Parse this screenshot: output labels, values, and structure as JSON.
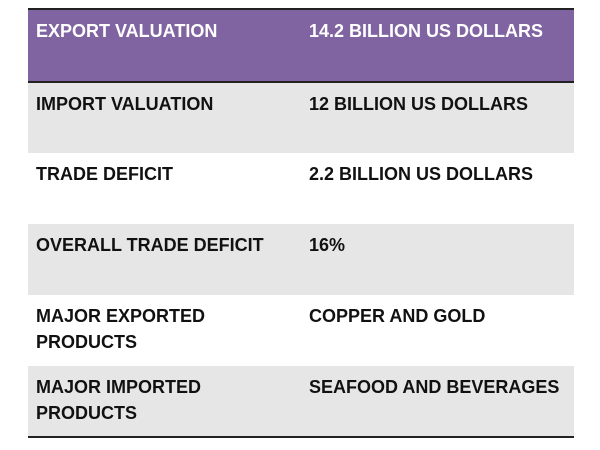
{
  "table": {
    "header": {
      "label": "EXPORT VALUATION",
      "value": "14.2 BILLION US DOLLARS"
    },
    "rows": [
      {
        "label": "IMPORT VALUATION",
        "value": "12 BILLION US DOLLARS"
      },
      {
        "label": "TRADE DEFICIT",
        "value": "2.2 BILLION US DOLLARS"
      },
      {
        "label": "OVERALL TRADE DEFICIT",
        "value": "16%"
      },
      {
        "label": "MAJOR EXPORTED PRODUCTS",
        "value": "COPPER AND GOLD"
      },
      {
        "label": "MAJOR IMPORTED PRODUCTS",
        "value": "SEAFOOD AND BEVERAGES"
      }
    ],
    "colors": {
      "header_bg": "#8064a2",
      "header_text": "#ffffff",
      "band_shaded": "#e6e6e6",
      "band_plain": "#ffffff",
      "rule": "#222222"
    }
  }
}
